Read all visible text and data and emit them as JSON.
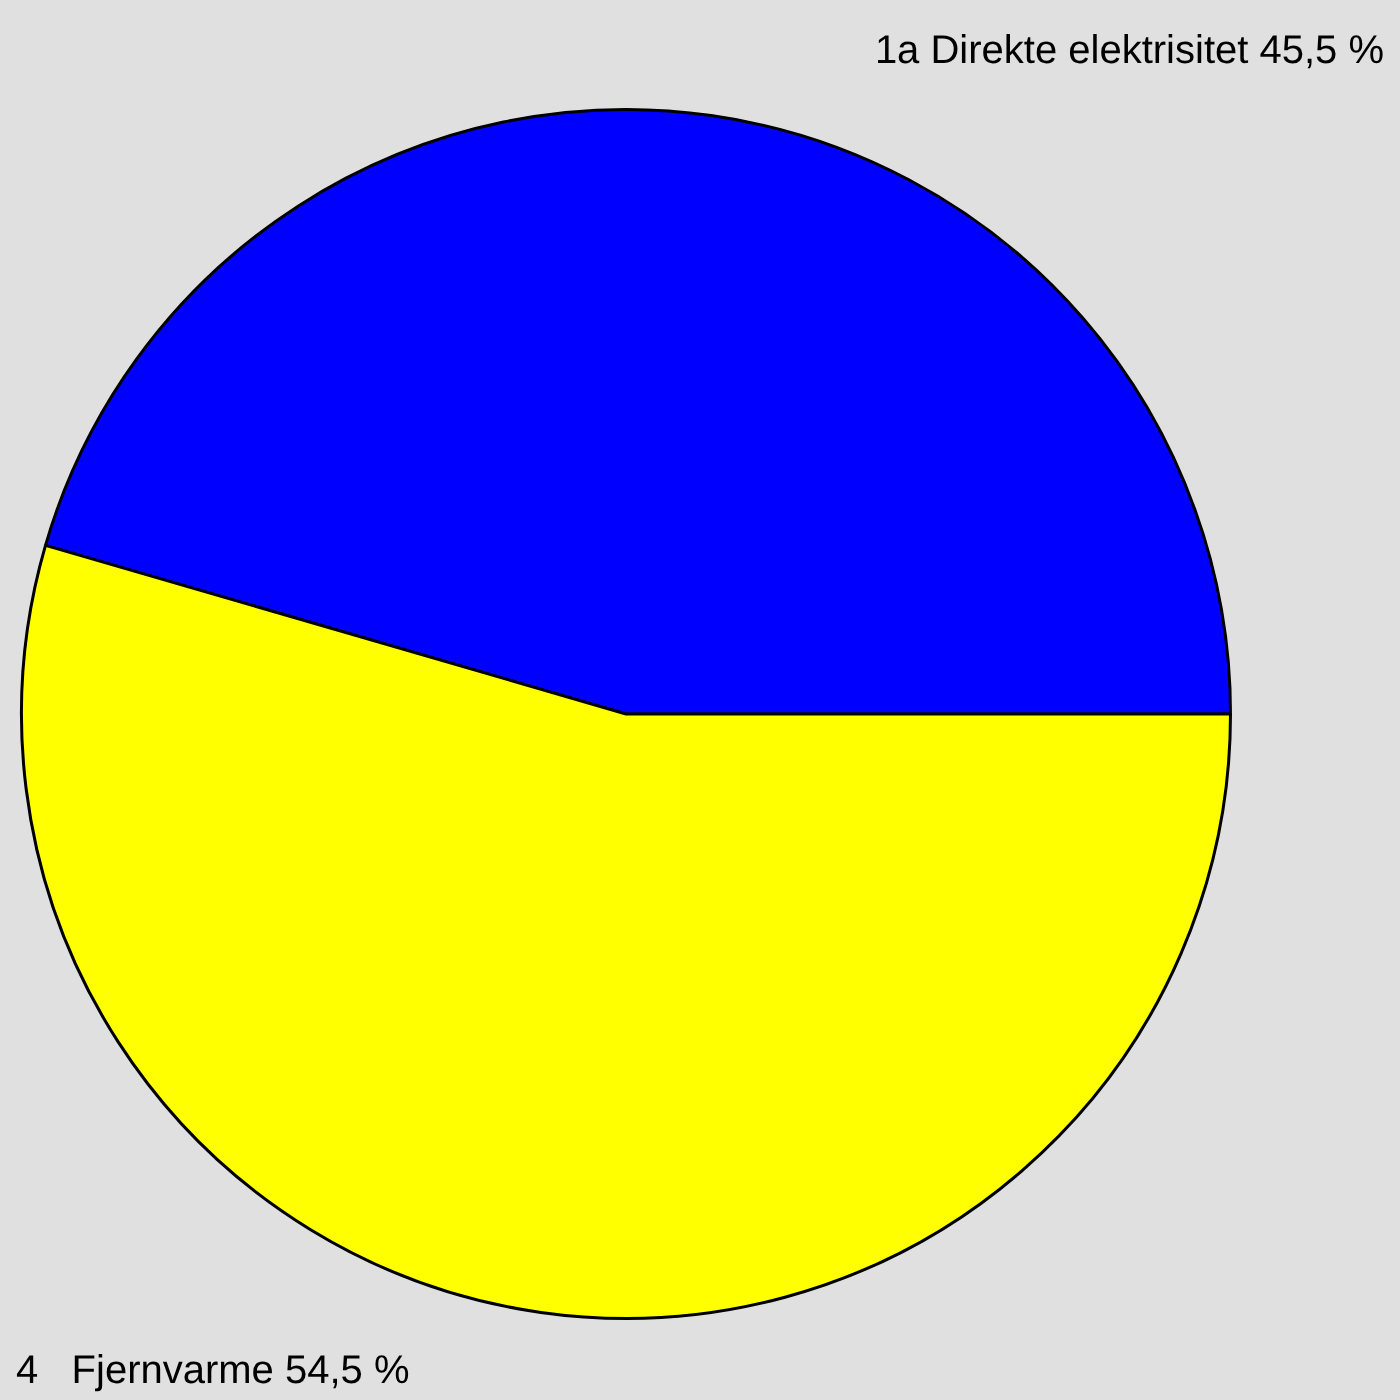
{
  "chart_data": {
    "type": "pie",
    "categories": [
      "1a Direkte elektrisitet",
      "4   Fjernvarme"
    ],
    "values": [
      45.5,
      54.5
    ],
    "colors": [
      "#0000ff",
      "#ffff00"
    ],
    "value_labels": [
      "45,5 %",
      "54,5 %"
    ],
    "legend": false
  }
}
